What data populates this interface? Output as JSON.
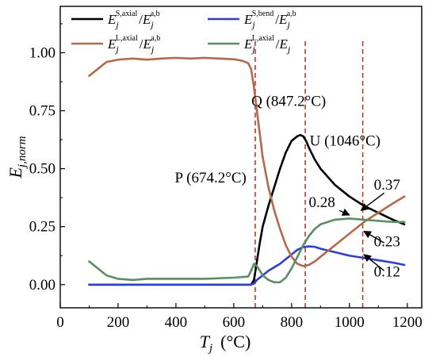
{
  "chart_data": {
    "type": "line",
    "ylabel": "E",
    "ylabel_sub": "j,norm",
    "xlabel": "T",
    "xlabel_sub": "j",
    "xlabel_unit": "(°C)",
    "xlim": [
      0,
      1250
    ],
    "ylim": [
      -0.1,
      1.2
    ],
    "xticks": [
      0,
      200,
      400,
      600,
      800,
      1000,
      1200
    ],
    "yticks": [
      0.0,
      0.25,
      0.5,
      0.75,
      1.0
    ],
    "ytick_labels": [
      "0.00",
      "0.25",
      "0.50",
      "0.75",
      "1.00"
    ],
    "series": [
      {
        "name": "E_j^{S,axial}/E_j^{a,b}",
        "legend": {
          "base": "E",
          "sub": "j",
          "sup": "S,axial",
          "base2": "E",
          "sub2": "j",
          "sup2": "a,b"
        },
        "color": "#000000",
        "x": [
          100,
          200,
          300,
          400,
          500,
          600,
          660,
          670,
          680,
          690,
          700,
          720,
          740,
          760,
          780,
          800,
          820,
          830,
          840,
          850,
          860,
          880,
          900,
          950,
          1000,
          1050,
          1100,
          1150,
          1190
        ],
        "y": [
          0,
          0,
          0,
          0,
          0,
          0,
          0,
          0.02,
          0.1,
          0.18,
          0.25,
          0.34,
          0.42,
          0.5,
          0.57,
          0.62,
          0.64,
          0.645,
          0.64,
          0.62,
          0.59,
          0.54,
          0.5,
          0.43,
          0.38,
          0.34,
          0.31,
          0.28,
          0.26
        ]
      },
      {
        "name": "E_j^{S,bend}/E_j^{a,b}",
        "legend": {
          "base": "E",
          "sub": "j",
          "sup": "S,bend",
          "base2": "E",
          "sub2": "j",
          "sup2": "a,b"
        },
        "color": "#2b3fd6",
        "x": [
          100,
          200,
          300,
          400,
          500,
          600,
          660,
          670,
          680,
          700,
          720,
          740,
          760,
          780,
          800,
          820,
          840,
          860,
          880,
          900,
          950,
          1000,
          1050,
          1100,
          1150,
          1190
        ],
        "y": [
          0,
          0,
          0,
          0,
          0,
          0,
          0,
          0.005,
          0.02,
          0.04,
          0.06,
          0.075,
          0.09,
          0.11,
          0.13,
          0.15,
          0.162,
          0.165,
          0.163,
          0.155,
          0.14,
          0.125,
          0.115,
          0.105,
          0.095,
          0.085
        ]
      },
      {
        "name": "E_j^{L,axial}/E_j^{a,b}",
        "legend": {
          "base": "E",
          "sub": "j",
          "sup": "L,axial",
          "base2": "E",
          "sub2": "j",
          "sup2": "a,b"
        },
        "color": "#b5694a",
        "x": [
          100,
          130,
          160,
          200,
          250,
          300,
          350,
          400,
          450,
          500,
          550,
          600,
          630,
          650,
          660,
          670,
          680,
          690,
          700,
          720,
          740,
          760,
          780,
          800,
          820,
          840,
          860,
          880,
          900,
          950,
          1000,
          1050,
          1100,
          1150,
          1190
        ],
        "y": [
          0.9,
          0.93,
          0.96,
          0.97,
          0.975,
          0.97,
          0.975,
          0.978,
          0.975,
          0.978,
          0.975,
          0.972,
          0.965,
          0.955,
          0.93,
          0.85,
          0.75,
          0.65,
          0.55,
          0.42,
          0.32,
          0.24,
          0.17,
          0.12,
          0.09,
          0.08,
          0.085,
          0.1,
          0.12,
          0.17,
          0.22,
          0.27,
          0.31,
          0.35,
          0.38
        ]
      },
      {
        "name": "E_j^{L,axial}/E_j",
        "legend": {
          "base": "E",
          "sub": "j",
          "sup": "L,axial",
          "base2": "E",
          "sub2": "j",
          "sup2": ""
        },
        "color": "#5a8f62",
        "x": [
          100,
          130,
          160,
          200,
          250,
          300,
          400,
          500,
          600,
          650,
          660,
          670,
          680,
          690,
          700,
          720,
          740,
          760,
          780,
          800,
          820,
          840,
          860,
          880,
          900,
          950,
          1000,
          1050,
          1100,
          1150,
          1190
        ],
        "y": [
          0.1,
          0.07,
          0.04,
          0.025,
          0.02,
          0.025,
          0.025,
          0.025,
          0.03,
          0.035,
          0.06,
          0.09,
          0.08,
          0.06,
          0.04,
          0.02,
          0.01,
          0.01,
          0.03,
          0.07,
          0.12,
          0.17,
          0.21,
          0.24,
          0.26,
          0.28,
          0.285,
          0.28,
          0.275,
          0.27,
          0.27
        ]
      }
    ],
    "vlines": [
      674.2,
      847.2,
      1046
    ],
    "vline_color": "#c0392b",
    "annotations": [
      {
        "text": "P (674.2°C)",
        "x": 520,
        "y": 0.44
      },
      {
        "text": "Q (847.2°C)",
        "x": 790,
        "y": 0.77
      },
      {
        "text": "U (1046°C)",
        "x": 985,
        "y": 0.6
      }
    ],
    "value_labels": [
      {
        "text": "0.37",
        "x": 1130,
        "y": 0.41,
        "arrow_to_x": 1040,
        "arrow_to_y": 0.32,
        "arrow_from_x": 1120,
        "arrow_from_y": 0.395
      },
      {
        "text": "0.28",
        "x": 905,
        "y": 0.335,
        "arrow_to_x": 1000,
        "arrow_to_y": 0.3,
        "arrow_from_x": 965,
        "arrow_from_y": 0.32
      },
      {
        "text": "0.23",
        "x": 1130,
        "y": 0.165,
        "arrow_to_x": 1050,
        "arrow_to_y": 0.23,
        "arrow_from_x": 1120,
        "arrow_from_y": 0.18
      },
      {
        "text": "0.12",
        "x": 1130,
        "y": 0.035,
        "arrow_to_x": 1050,
        "arrow_to_y": 0.13,
        "arrow_from_x": 1120,
        "arrow_from_y": 0.06
      }
    ]
  }
}
